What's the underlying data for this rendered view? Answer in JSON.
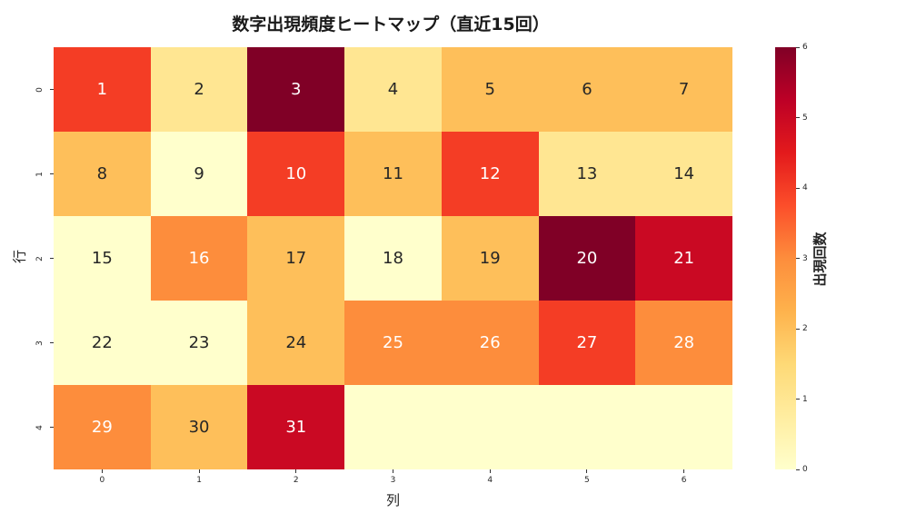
{
  "chart": {
    "title": "数字出現頻度ヒートマップ（直近15回）",
    "xlabel": "列",
    "ylabel": "行",
    "colorbar_label": "出現回数",
    "colorbar_ticks": [
      "0",
      "1",
      "2",
      "3",
      "4",
      "5",
      "6"
    ],
    "x_ticks": [
      "0",
      "1",
      "2",
      "3",
      "4",
      "5",
      "6"
    ],
    "y_ticks": [
      "0",
      "1",
      "2",
      "3",
      "4"
    ]
  },
  "chart_data": {
    "type": "heatmap",
    "title": "数字出現頻度ヒートマップ（直近15回）",
    "xlabel": "列",
    "ylabel": "行",
    "colorbar_label": "出現回数",
    "colormap": "YlOrRd",
    "vmin": 0,
    "vmax": 6,
    "x_categories": [
      0,
      1,
      2,
      3,
      4,
      5,
      6
    ],
    "y_categories": [
      0,
      1,
      2,
      3,
      4
    ],
    "annotations": [
      [
        "1",
        "2",
        "3",
        "4",
        "5",
        "6",
        "7"
      ],
      [
        "8",
        "9",
        "10",
        "11",
        "12",
        "13",
        "14"
      ],
      [
        "15",
        "16",
        "17",
        "18",
        "19",
        "20",
        "21"
      ],
      [
        "22",
        "23",
        "24",
        "25",
        "26",
        "27",
        "28"
      ],
      [
        "29",
        "30",
        "31",
        "",
        "",
        "",
        ""
      ]
    ],
    "values": [
      [
        4,
        1,
        6,
        1,
        2,
        2,
        2
      ],
      [
        2,
        0,
        4,
        2,
        4,
        1,
        1
      ],
      [
        0,
        3,
        2,
        0,
        2,
        6,
        5
      ],
      [
        0,
        0,
        2,
        3,
        3,
        4,
        3
      ],
      [
        3,
        2,
        5,
        0,
        0,
        0,
        0
      ]
    ]
  }
}
